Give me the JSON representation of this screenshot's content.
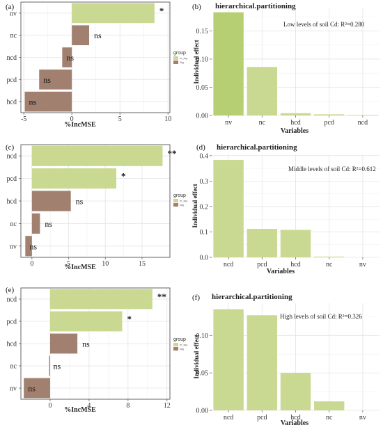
{
  "colors": {
    "sig_bar": "#c9d992",
    "nonsig_bar": "#a2806f",
    "hp_bar": "#c9d992",
    "hp_bar_top": "#b6cf73",
    "grid_major": "#e4e4e4",
    "grid_minor": "#f1f1f1",
    "panel_border": "#555555"
  },
  "legend": {
    "title": "group",
    "items": [
      "m_sig",
      "Sig"
    ]
  },
  "chart_data": [
    {
      "id": "a",
      "letter": "(a)",
      "type": "bar",
      "orientation": "horizontal",
      "categories": [
        "nv",
        "nc",
        "ncd",
        "pcd",
        "hcd"
      ],
      "values": [
        8.6,
        1.8,
        -1.0,
        -3.4,
        -4.9
      ],
      "significance": [
        "*",
        "ns",
        "ns",
        "ns",
        "ns"
      ],
      "significant": [
        true,
        false,
        false,
        false,
        false
      ],
      "xlabel": "%IncMSE",
      "xlim": [
        -5.3,
        10.2
      ],
      "xticks": [
        -5,
        0,
        5,
        10
      ],
      "xtick_labels": [
        "-5",
        "0",
        "5",
        "10"
      ],
      "grid": true
    },
    {
      "id": "b",
      "letter": "(b)",
      "type": "bar",
      "title": "hierarchical.partitioning",
      "annotation": "Low levels of soil Cd: R²=0.280",
      "categories": [
        "nv",
        "nc",
        "hcd",
        "pcd",
        "ncd"
      ],
      "values": [
        0.183,
        0.086,
        0.004,
        0.002,
        0.001
      ],
      "ylabel": "Individual effect",
      "xlabel": "Variables",
      "ylim": [
        0,
        0.19
      ],
      "yticks": [
        0,
        0.05,
        0.1,
        0.15
      ],
      "ytick_labels": [
        "0.00",
        "0.05",
        "0.10",
        "0.15"
      ],
      "grid": true
    },
    {
      "id": "c",
      "letter": "(c)",
      "type": "bar",
      "orientation": "horizontal",
      "categories": [
        "ncd",
        "pcd",
        "hcd",
        "nc",
        "nv"
      ],
      "values": [
        17.8,
        11.5,
        5.3,
        1.1,
        -0.9
      ],
      "significance": [
        "**",
        "*",
        "ns",
        "ns",
        "ns"
      ],
      "significant": [
        true,
        true,
        false,
        false,
        false
      ],
      "xlabel": "%IncMSE",
      "xlim": [
        -1.5,
        18.8
      ],
      "xticks": [
        0,
        5,
        10,
        15
      ],
      "xtick_labels": [
        "0",
        "5",
        "10",
        "15"
      ],
      "grid": true
    },
    {
      "id": "d",
      "letter": "(d)",
      "type": "bar",
      "title": "hierarchical.partitioning",
      "annotation": "Middle levels of soil Cd: R²=0.612",
      "categories": [
        "ncd",
        "pcd",
        "hcd",
        "nc",
        "nv"
      ],
      "values": [
        0.383,
        0.112,
        0.108,
        0.003,
        0.0
      ],
      "ylabel": "Individual effect",
      "xlabel": "Variables",
      "ylim": [
        0,
        0.405
      ],
      "yticks": [
        0,
        0.1,
        0.2,
        0.3,
        0.4
      ],
      "ytick_labels": [
        "0.0",
        "0.1",
        "0.2",
        "0.3",
        "0.4"
      ],
      "grid": true
    },
    {
      "id": "e",
      "letter": "(e)",
      "type": "bar",
      "orientation": "horizontal",
      "categories": [
        "ncd",
        "pcd",
        "hcd",
        "nc",
        "nv"
      ],
      "values": [
        10.5,
        7.4,
        2.8,
        -0.1,
        -2.7
      ],
      "significance": [
        "**",
        "*",
        "ns",
        "ns",
        "ns"
      ],
      "significant": [
        true,
        true,
        false,
        false,
        false
      ],
      "xlabel": "%IncMSE",
      "xlim": [
        -3.0,
        12.3
      ],
      "xticks": [
        0,
        4,
        8,
        12
      ],
      "xtick_labels": [
        "0",
        "4",
        "8",
        "12"
      ],
      "grid": true
    },
    {
      "id": "f",
      "letter": "(f)",
      "type": "bar",
      "title": "hierarchical.partitioning",
      "annotation": "High levels of soil Cd: R²=0.326",
      "categories": [
        "ncd",
        "pcd",
        "hcd",
        "nc",
        "nv"
      ],
      "values": [
        0.135,
        0.127,
        0.05,
        0.012,
        0.0
      ],
      "ylabel": "Individual effect",
      "xlabel": "Variables",
      "ylim": [
        0,
        0.143
      ],
      "yticks": [
        0,
        0.05,
        0.1
      ],
      "ytick_labels": [
        "0.00",
        "0.05",
        "0.10"
      ],
      "grid": true
    }
  ]
}
